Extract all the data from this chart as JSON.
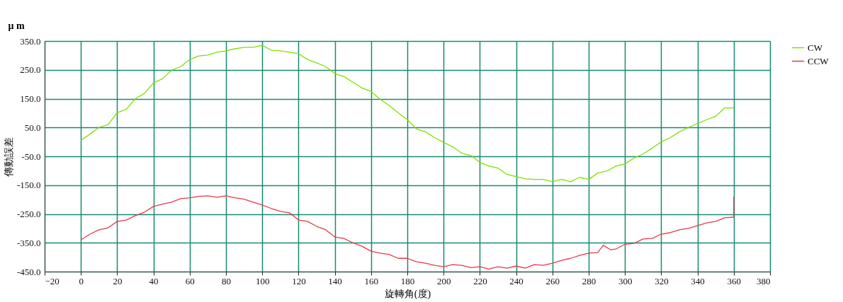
{
  "chart_data": {
    "type": "line",
    "xlabel": "旋轉角(度)",
    "ylabel": "傳動誤差",
    "annotations": [
      "μ m"
    ],
    "xlim": [
      -20,
      380
    ],
    "xticks": [
      -20,
      0,
      20,
      40,
      60,
      80,
      100,
      120,
      140,
      160,
      180,
      200,
      220,
      240,
      260,
      280,
      300,
      320,
      340,
      360,
      380
    ],
    "ylim": [
      -450,
      350
    ],
    "yticks": [
      {
        "value": -450,
        "label": "-450.0"
      },
      {
        "value": -350,
        "label": "-350.0"
      },
      {
        "value": -250,
        "label": "-250.0"
      },
      {
        "value": -150,
        "label": "-150.0"
      },
      {
        "value": -50,
        "label": "-50.0"
      },
      {
        "value": 50,
        "label": "50.0"
      },
      {
        "value": 150,
        "label": "150.0"
      },
      {
        "value": 250,
        "label": "250.0"
      },
      {
        "value": 350,
        "label": "350.0"
      }
    ],
    "grid": true,
    "legend": "top right",
    "marker": "none",
    "line_style": "solid",
    "x": [
      0,
      5,
      10,
      15,
      20,
      25,
      30,
      35,
      40,
      45,
      50,
      55,
      60,
      65,
      70,
      75,
      80,
      85,
      90,
      95,
      100,
      105,
      110,
      115,
      120,
      125,
      130,
      135,
      140,
      145,
      150,
      155,
      160,
      165,
      170,
      175,
      180,
      185,
      190,
      195,
      200,
      205,
      210,
      215,
      220,
      225,
      230,
      235,
      240,
      245,
      250,
      255,
      260,
      265,
      270,
      275,
      280,
      285,
      290,
      295,
      300,
      305,
      310,
      315,
      320,
      325,
      330,
      335,
      340,
      345,
      350,
      355,
      360
    ],
    "series": [
      {
        "name": "CW",
        "color": "#7fe000",
        "values": [
          5,
          27,
          50,
          60,
          101,
          113,
          150,
          168,
          205,
          219,
          249,
          261,
          286,
          298,
          301,
          311,
          316,
          323,
          328,
          328,
          335,
          318,
          316,
          311,
          306,
          286,
          274,
          261,
          237,
          227,
          207,
          187,
          175,
          148,
          126,
          101,
          77,
          45,
          35,
          15,
          -2,
          -17,
          -39,
          -47,
          -71,
          -84,
          -91,
          -113,
          -120,
          -128,
          -130,
          -130,
          -138,
          -130,
          -138,
          -123,
          -130,
          -108,
          -101,
          -84,
          -76,
          -56,
          -42,
          -22,
          0,
          15,
          35,
          50,
          64,
          77,
          89,
          118,
          118
        ]
      },
      {
        "name": "CCW",
        "color": "#e8384a",
        "x": [
          0,
          5,
          10,
          15,
          20,
          25,
          30,
          35,
          40,
          45,
          50,
          55,
          60,
          65,
          70,
          75,
          80,
          85,
          90,
          95,
          100,
          105,
          110,
          115,
          120,
          125,
          130,
          135,
          140,
          145,
          150,
          155,
          160,
          165,
          170,
          175,
          180,
          185,
          190,
          195,
          200,
          205,
          210,
          215,
          220,
          225,
          230,
          235,
          240,
          245,
          250,
          255,
          260,
          265,
          270,
          275,
          280,
          285,
          288,
          292,
          295,
          300,
          305,
          310,
          315,
          320,
          325,
          330,
          335,
          340,
          345,
          350,
          355,
          360,
          360
        ],
        "values": [
          -340,
          -320,
          -305,
          -298,
          -276,
          -271,
          -256,
          -244,
          -224,
          -216,
          -209,
          -197,
          -194,
          -189,
          -187,
          -192,
          -187,
          -194,
          -199,
          -209,
          -219,
          -231,
          -241,
          -246,
          -271,
          -276,
          -293,
          -305,
          -330,
          -335,
          -350,
          -362,
          -379,
          -386,
          -391,
          -404,
          -404,
          -416,
          -421,
          -428,
          -433,
          -426,
          -428,
          -436,
          -433,
          -441,
          -433,
          -438,
          -431,
          -438,
          -426,
          -428,
          -421,
          -411,
          -404,
          -394,
          -386,
          -384,
          -359,
          -374,
          -372,
          -355,
          -352,
          -337,
          -335,
          -320,
          -315,
          -305,
          -300,
          -291,
          -281,
          -276,
          -263,
          -261,
          -190
        ]
      }
    ]
  }
}
